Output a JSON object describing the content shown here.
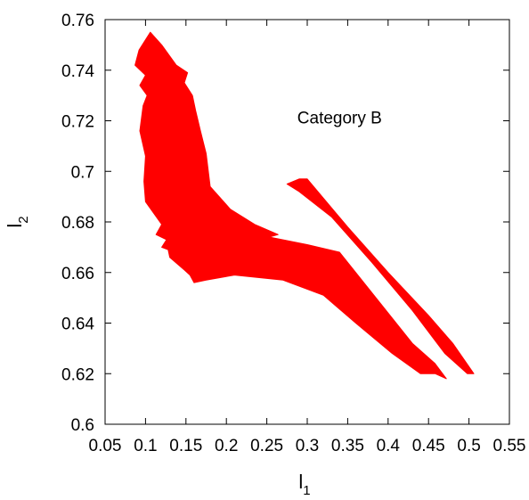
{
  "chart_data": {
    "type": "area",
    "title": "",
    "xlabel": {
      "main": "l",
      "sub": "1"
    },
    "ylabel": {
      "main": "l",
      "sub": "2"
    },
    "xlim": [
      0.05,
      0.55
    ],
    "ylim": [
      0.6,
      0.76
    ],
    "xticks": [
      0.05,
      0.1,
      0.15,
      0.2,
      0.25,
      0.3,
      0.35,
      0.4,
      0.45,
      0.5,
      0.55
    ],
    "xtick_labels": [
      "0.05",
      "0.1",
      "0.15",
      "0.2",
      "0.25",
      "0.3",
      "0.35",
      "0.4",
      "0.45",
      "0.5",
      "0.55"
    ],
    "yticks": [
      0.6,
      0.62,
      0.64,
      0.66,
      0.68,
      0.7,
      0.72,
      0.74,
      0.76
    ],
    "ytick_labels": [
      "0.6",
      "0.62",
      "0.64",
      "0.66",
      "0.68",
      "0.7",
      "0.72",
      "0.74",
      "0.76"
    ],
    "grid": false,
    "legend": "none",
    "color": "#ff0000",
    "annotation": {
      "text": "Category B",
      "x": 0.34,
      "y": 0.719
    },
    "regions": [
      {
        "points": [
          [
            0.106,
            0.755
          ],
          [
            0.12,
            0.75
          ],
          [
            0.138,
            0.742
          ],
          [
            0.152,
            0.739
          ],
          [
            0.148,
            0.735
          ],
          [
            0.158,
            0.73
          ],
          [
            0.162,
            0.724
          ],
          [
            0.168,
            0.716
          ],
          [
            0.175,
            0.707
          ],
          [
            0.18,
            0.694
          ],
          [
            0.205,
            0.685
          ],
          [
            0.235,
            0.679
          ],
          [
            0.264,
            0.675
          ],
          [
            0.253,
            0.674
          ],
          [
            0.3,
            0.671
          ],
          [
            0.34,
            0.668
          ],
          [
            0.39,
            0.648
          ],
          [
            0.43,
            0.632
          ],
          [
            0.458,
            0.624
          ],
          [
            0.472,
            0.618
          ],
          [
            0.458,
            0.62
          ],
          [
            0.44,
            0.62
          ],
          [
            0.405,
            0.628
          ],
          [
            0.36,
            0.64
          ],
          [
            0.32,
            0.651
          ],
          [
            0.27,
            0.657
          ],
          [
            0.21,
            0.659
          ],
          [
            0.175,
            0.657
          ],
          [
            0.16,
            0.656
          ],
          [
            0.155,
            0.659
          ],
          [
            0.148,
            0.661
          ],
          [
            0.13,
            0.666
          ],
          [
            0.128,
            0.669
          ],
          [
            0.12,
            0.67
          ],
          [
            0.126,
            0.673
          ],
          [
            0.113,
            0.675
          ],
          [
            0.12,
            0.679
          ],
          [
            0.1,
            0.688
          ],
          [
            0.098,
            0.696
          ],
          [
            0.1,
            0.706
          ],
          [
            0.093,
            0.716
          ],
          [
            0.097,
            0.726
          ],
          [
            0.102,
            0.73
          ],
          [
            0.093,
            0.734
          ],
          [
            0.1,
            0.738
          ],
          [
            0.087,
            0.742
          ],
          [
            0.092,
            0.748
          ]
        ]
      },
      {
        "points": [
          [
            0.275,
            0.695
          ],
          [
            0.29,
            0.697
          ],
          [
            0.3,
            0.697
          ],
          [
            0.35,
            0.678
          ],
          [
            0.4,
            0.66
          ],
          [
            0.45,
            0.643
          ],
          [
            0.48,
            0.632
          ],
          [
            0.506,
            0.62
          ],
          [
            0.498,
            0.62
          ],
          [
            0.47,
            0.628
          ],
          [
            0.43,
            0.645
          ],
          [
            0.38,
            0.664
          ],
          [
            0.33,
            0.682
          ],
          [
            0.29,
            0.692
          ]
        ]
      }
    ]
  }
}
